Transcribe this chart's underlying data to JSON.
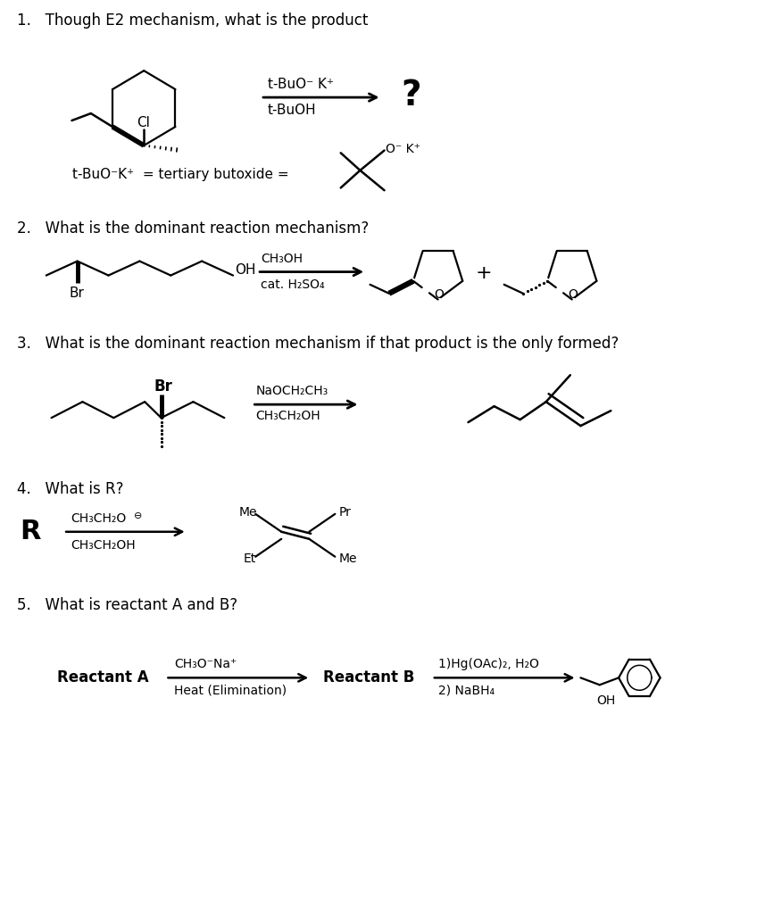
{
  "bg_color": "#ffffff",
  "questions": [
    "1.   Though E2 mechanism, what is the product",
    "2.   What is the dominant reaction mechanism?",
    "3.   What is the dominant reaction mechanism if that product is the only formed?",
    "4.   What is R?",
    "5.   What is reactant A and B?"
  ],
  "q1_reagent1": "t-BuO⁻ K⁺",
  "q1_reagent2": "t-BuOH",
  "q2_reagent1": "CH₃OH",
  "q2_reagent2": "cat. H₂SO₄",
  "q3_reagent1": "NaOCH₂CH₃",
  "q3_reagent2": "CH₃CH₂OH",
  "q4_reagent1": "CH₃CH₂O",
  "q4_reagent2": "CH₃CH₂OH",
  "q5a_reagent1": "CH₃O⁻Na⁺",
  "q5a_reagent2": "Heat (Elimination)",
  "q5b_reagent1": "1)Hg(OAc)₂, H₂O",
  "q5b_reagent2": "2) NaBH₄",
  "tbuo_label": "t-BuO⁻K⁺  = tertiary butoxide =",
  "ok_label": "O⁻ K⁺"
}
